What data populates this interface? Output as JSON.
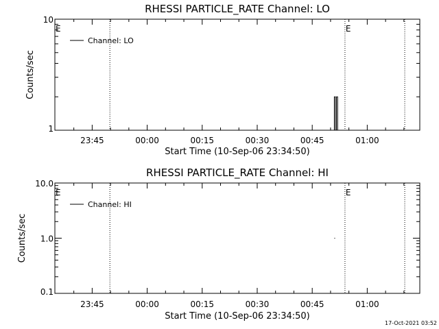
{
  "footer": {
    "timestamp": "17-Oct-2021 03:52"
  },
  "chart_data": [
    {
      "type": "line",
      "title": "RHESSI PARTICLE_RATE Channel: LO",
      "xlabel": "Start Time (10-Sep-06 23:34:50)",
      "ylabel": "Counts/sec",
      "x_unit": "minutes from 23:34:50",
      "xlim": [
        0,
        99.5
      ],
      "x_ticks": [
        {
          "label": "23:45",
          "value": 10.17
        },
        {
          "label": "00:00",
          "value": 25.17
        },
        {
          "label": "00:15",
          "value": 40.17
        },
        {
          "label": "00:30",
          "value": 55.17
        },
        {
          "label": "00:45",
          "value": 70.17
        },
        {
          "label": "01:00",
          "value": 85.17
        }
      ],
      "y_scale": "log",
      "ylim": [
        1,
        10
      ],
      "y_ticks": [
        {
          "label": "1",
          "value": 1
        },
        {
          "label": "10",
          "value": 10
        }
      ],
      "grid": false,
      "legend_position": "top-left",
      "legend": [
        "Channel: LO"
      ],
      "series": [
        {
          "name": "Channel: LO",
          "x": [
            75.9,
            76.2,
            76.2,
            76.5,
            76.5,
            76.8,
            76.8,
            77.1,
            77.1,
            77.4
          ],
          "y": [
            1,
            1,
            2,
            2,
            1,
            1,
            2,
            2,
            1,
            1
          ]
        }
      ],
      "markers": [
        {
          "x": 15.0,
          "label": ""
        },
        {
          "x": 79.1,
          "label": "E"
        },
        {
          "x": 95.4,
          "label": ""
        }
      ],
      "left_marker_label": "E"
    },
    {
      "type": "line",
      "title": "RHESSI PARTICLE_RATE Channel: HI",
      "xlabel": "Start Time (10-Sep-06 23:34:50)",
      "ylabel": "Counts/sec",
      "x_unit": "minutes from 23:34:50",
      "xlim": [
        0,
        99.5
      ],
      "x_ticks": [
        {
          "label": "23:45",
          "value": 10.17
        },
        {
          "label": "00:00",
          "value": 25.17
        },
        {
          "label": "00:15",
          "value": 40.17
        },
        {
          "label": "00:30",
          "value": 55.17
        },
        {
          "label": "00:45",
          "value": 70.17
        },
        {
          "label": "01:00",
          "value": 85.17
        }
      ],
      "y_scale": "log",
      "ylim": [
        0.1,
        10
      ],
      "y_ticks": [
        {
          "label": "0.1",
          "value": 0.1
        },
        {
          "label": "1.0",
          "value": 1
        },
        {
          "label": "10.0",
          "value": 10
        }
      ],
      "grid": false,
      "legend_position": "top-left",
      "legend": [
        "Channel: HI"
      ],
      "series": [
        {
          "name": "Channel: HI",
          "x": [
            76.2,
            76.4
          ],
          "y": [
            1,
            1
          ]
        }
      ],
      "markers": [
        {
          "x": 15.0,
          "label": ""
        },
        {
          "x": 79.1,
          "label": "E"
        },
        {
          "x": 95.4,
          "label": ""
        }
      ],
      "left_marker_label": "E"
    }
  ]
}
